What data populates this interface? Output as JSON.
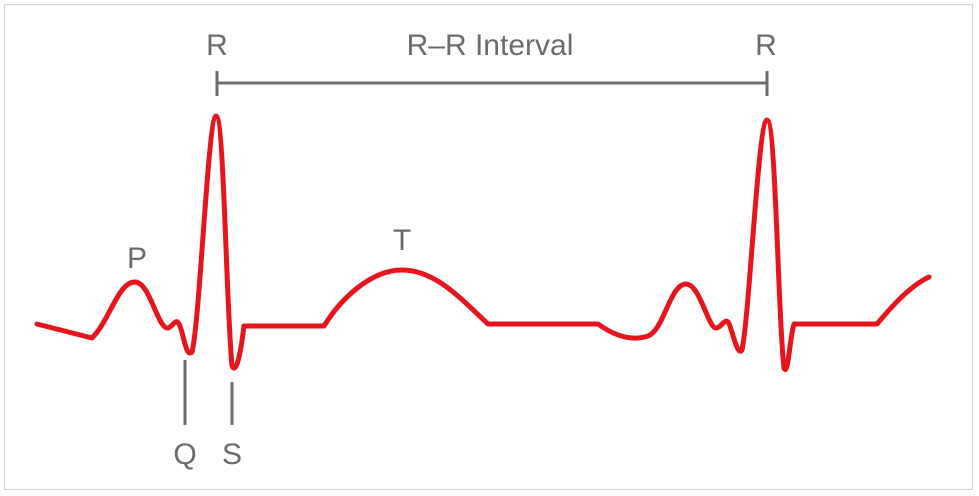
{
  "diagram": {
    "labels": {
      "r_left": "R",
      "r_right": "R",
      "interval": "R–R Interval",
      "p": "P",
      "t": "T",
      "q": "Q",
      "s": "S"
    },
    "colors": {
      "trace": "#e8141b",
      "marker": "#6e6e6e",
      "text": "#6b6b6b",
      "frame": "#cfcfcf"
    }
  }
}
